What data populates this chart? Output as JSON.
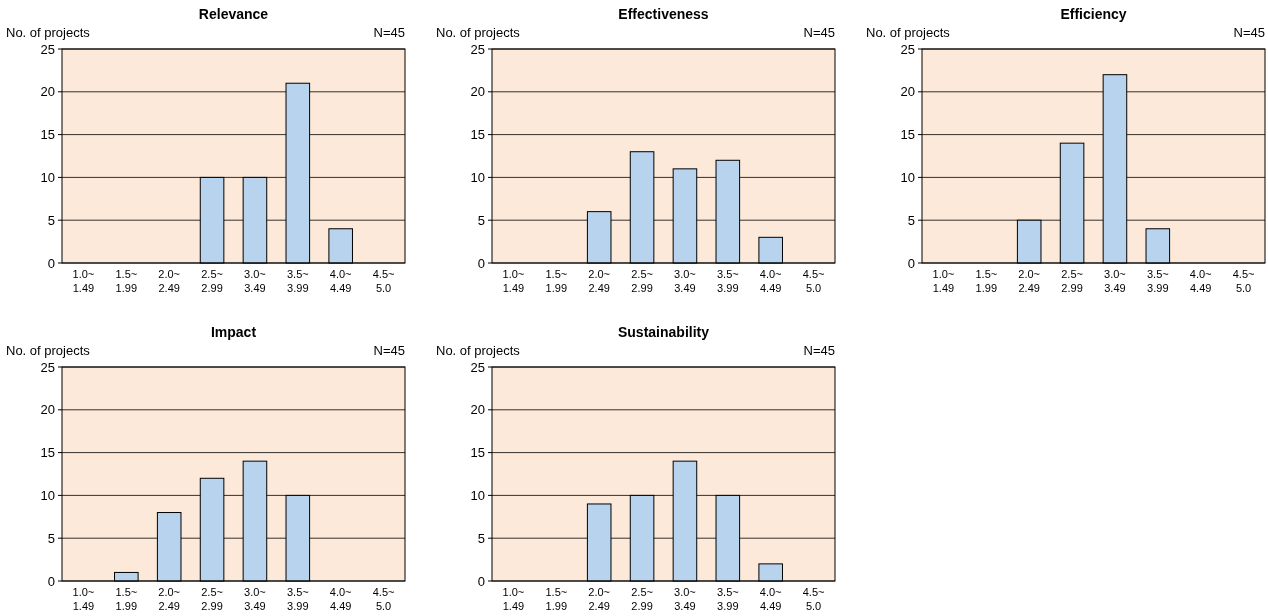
{
  "chart_data": [
    {
      "type": "bar",
      "title": "Relevance",
      "ylabel": "No. of projects",
      "annotations": [
        "N=45"
      ],
      "categories": [
        "1.0~\n1.49",
        "1.5~\n1.99",
        "2.0~\n2.49",
        "2.5~\n2.99",
        "3.0~\n3.49",
        "3.5~\n3.99",
        "4.0~\n4.49",
        "4.5~\n5.0"
      ],
      "values": [
        0,
        0,
        0,
        10,
        10,
        21,
        4,
        0
      ],
      "color": "#b8d3ee",
      "ylim": [
        0,
        25
      ],
      "yticks": [
        0,
        5,
        10,
        15,
        20,
        25
      ],
      "grid": "y"
    },
    {
      "type": "bar",
      "title": "Effectiveness",
      "ylabel": "No. of projects",
      "annotations": [
        "N=45"
      ],
      "categories": [
        "1.0~\n1.49",
        "1.5~\n1.99",
        "2.0~\n2.49",
        "2.5~\n2.99",
        "3.0~\n3.49",
        "3.5~\n3.99",
        "4.0~\n4.49",
        "4.5~\n5.0"
      ],
      "values": [
        0,
        0,
        6,
        13,
        11,
        12,
        3,
        0
      ],
      "color": "#b8d3ee",
      "ylim": [
        0,
        25
      ],
      "yticks": [
        0,
        5,
        10,
        15,
        20,
        25
      ],
      "grid": "y"
    },
    {
      "type": "bar",
      "title": "Efficiency",
      "ylabel": "No. of projects",
      "annotations": [
        "N=45"
      ],
      "categories": [
        "1.0~\n1.49",
        "1.5~\n1.99",
        "2.0~\n2.49",
        "2.5~\n2.99",
        "3.0~\n3.49",
        "3.5~\n3.99",
        "4.0~\n4.49",
        "4.5~\n5.0"
      ],
      "values": [
        0,
        0,
        5,
        14,
        22,
        4,
        0,
        0
      ],
      "color": "#b8d3ee",
      "ylim": [
        0,
        25
      ],
      "yticks": [
        0,
        5,
        10,
        15,
        20,
        25
      ],
      "grid": "y"
    },
    {
      "type": "bar",
      "title": "Impact",
      "ylabel": "No. of projects",
      "annotations": [
        "N=45"
      ],
      "categories": [
        "1.0~\n1.49",
        "1.5~\n1.99",
        "2.0~\n2.49",
        "2.5~\n2.99",
        "3.0~\n3.49",
        "3.5~\n3.99",
        "4.0~\n4.49",
        "4.5~\n5.0"
      ],
      "values": [
        0,
        1,
        8,
        12,
        14,
        10,
        0,
        0
      ],
      "color": "#b8d3ee",
      "ylim": [
        0,
        25
      ],
      "yticks": [
        0,
        5,
        10,
        15,
        20,
        25
      ],
      "grid": "y"
    },
    {
      "type": "bar",
      "title": "Sustainability",
      "ylabel": "No. of projects",
      "annotations": [
        "N=45"
      ],
      "categories": [
        "1.0~\n1.49",
        "1.5~\n1.99",
        "2.0~\n2.49",
        "2.5~\n2.99",
        "3.0~\n3.49",
        "3.5~\n3.99",
        "4.0~\n4.49",
        "4.5~\n5.0"
      ],
      "values": [
        0,
        0,
        9,
        10,
        14,
        10,
        2,
        0
      ],
      "color": "#b8d3ee",
      "ylim": [
        0,
        25
      ],
      "yticks": [
        0,
        5,
        10,
        15,
        20,
        25
      ],
      "grid": "y"
    }
  ]
}
